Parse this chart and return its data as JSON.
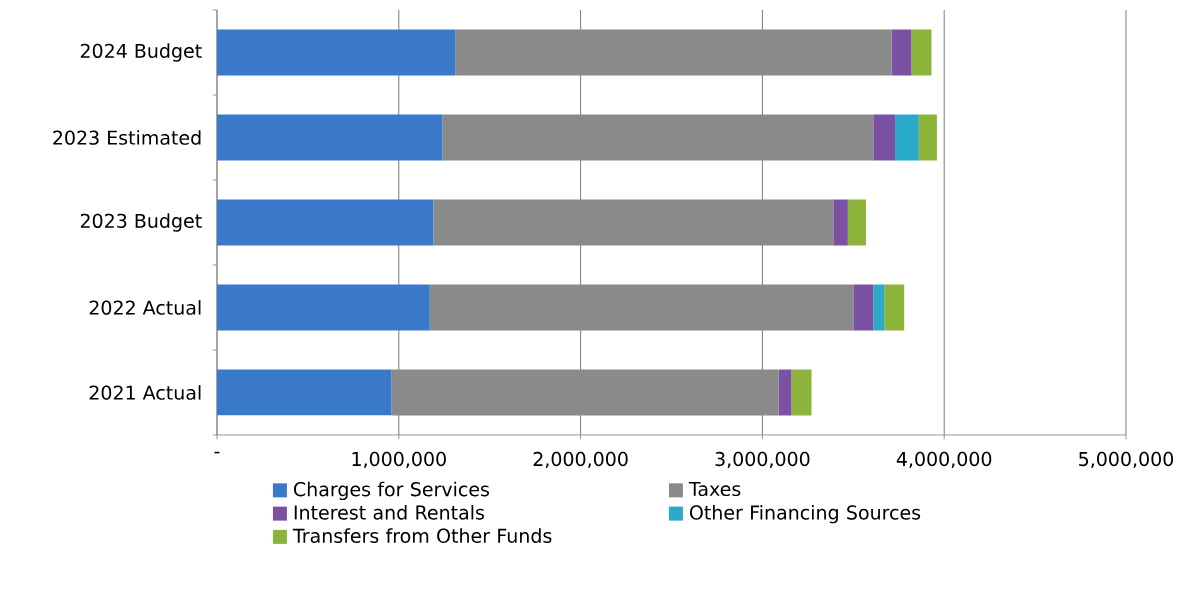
{
  "chart_data": {
    "type": "bar",
    "orientation": "horizontal",
    "stacked": true,
    "categories": [
      "2024 Budget",
      "2023 Estimated",
      "2023 Budget",
      "2022 Actual",
      "2021 Actual"
    ],
    "series": [
      {
        "name": "Charges for Services",
        "color": "#3a78c9",
        "values": [
          1310000,
          1240000,
          1190000,
          1170000,
          960000
        ]
      },
      {
        "name": "Taxes",
        "color": "#8a8a8a",
        "values": [
          2400000,
          2370000,
          2200000,
          2330000,
          2130000
        ]
      },
      {
        "name": "Interest and Rentals",
        "color": "#7b52a3",
        "values": [
          110000,
          120000,
          80000,
          110000,
          70000
        ]
      },
      {
        "name": "Other Financing Sources",
        "color": "#2aaac8",
        "values": [
          0,
          130000,
          0,
          60000,
          0
        ]
      },
      {
        "name": "Transfers from Other Funds",
        "color": "#8db43a",
        "values": [
          110000,
          100000,
          100000,
          110000,
          110000
        ]
      }
    ],
    "xlim": [
      0,
      5000000
    ],
    "xticks": [
      {
        "value": 0,
        "label": "-"
      },
      {
        "value": 1000000,
        "label": "1,000,000"
      },
      {
        "value": 2000000,
        "label": "2,000,000"
      },
      {
        "value": 3000000,
        "label": "3,000,000"
      },
      {
        "value": 4000000,
        "label": "4,000,000"
      },
      {
        "value": 5000000,
        "label": "5,000,000"
      }
    ],
    "grid": "x",
    "legend": "bottom"
  }
}
